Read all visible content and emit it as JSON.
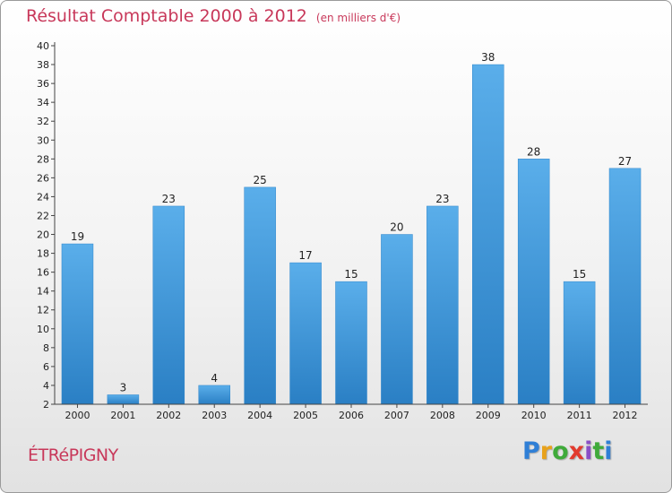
{
  "title": "Résultat Comptable 2000 à 2012",
  "subtitle": "(en milliers d'€)",
  "commune": "ÉTRéPIGNY",
  "logo": {
    "letters": [
      "P",
      "r",
      "o",
      "x",
      "i",
      "t",
      "i"
    ],
    "colors": [
      "#2f7fd6",
      "#e8a21c",
      "#3faa3a",
      "#e23b2e",
      "#8a4fc6",
      "#3faa3a",
      "#2f7fd6"
    ]
  },
  "colors": {
    "bar_light": "#5aaeea",
    "bar_dark": "#2a7fc4",
    "title": "#c8385a"
  },
  "chart_data": {
    "type": "bar",
    "categories": [
      "2000",
      "2001",
      "2002",
      "2003",
      "2004",
      "2005",
      "2006",
      "2007",
      "2008",
      "2009",
      "2010",
      "2011",
      "2012"
    ],
    "values": [
      19,
      3,
      23,
      4,
      25,
      17,
      15,
      20,
      23,
      38,
      28,
      15,
      27
    ],
    "data_labels": [
      "19",
      "3",
      "23",
      "4",
      "25",
      "17",
      "15",
      "20",
      "23",
      "38",
      "28",
      "15",
      "27"
    ],
    "ylim": [
      2,
      40
    ],
    "yticks": [
      "2",
      "4",
      "6",
      "8",
      "10",
      "12",
      "14",
      "16",
      "18",
      "20",
      "22",
      "24",
      "26",
      "28",
      "30",
      "32",
      "34",
      "36",
      "38",
      "40"
    ],
    "grid": false,
    "legend": "none"
  }
}
